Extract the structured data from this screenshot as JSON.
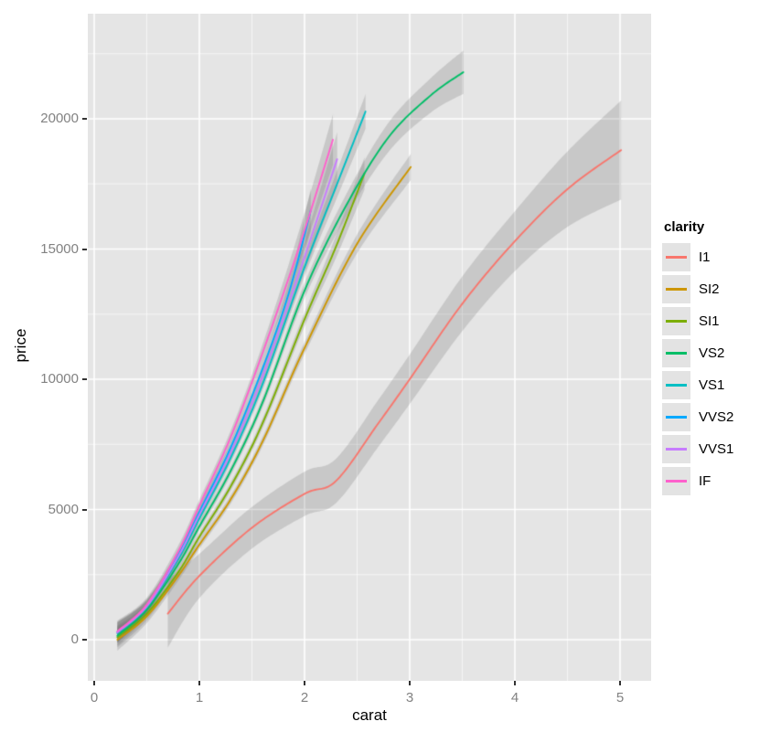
{
  "axes": {
    "x": {
      "label": "carat",
      "tick_labels": [
        "0",
        "1",
        "2",
        "3",
        "4",
        "5"
      ],
      "tick_values": [
        0,
        1,
        2,
        3,
        4,
        5
      ],
      "minor_values": [
        0.5,
        1.5,
        2.5,
        3.5,
        4.5
      ]
    },
    "y": {
      "label": "price",
      "tick_labels": [
        "0",
        "5000",
        "10000",
        "15000",
        "20000"
      ],
      "tick_values": [
        0,
        5000,
        10000,
        15000,
        20000
      ],
      "minor_values": [
        2500,
        7500,
        12500,
        17500,
        22500
      ]
    }
  },
  "legend": {
    "title": "clarity",
    "items": [
      {
        "label": "I1",
        "color": "#F8766D"
      },
      {
        "label": "SI2",
        "color": "#CD9600"
      },
      {
        "label": "SI1",
        "color": "#7CAE00"
      },
      {
        "label": "VS2",
        "color": "#00BE67"
      },
      {
        "label": "VS1",
        "color": "#00BFC4"
      },
      {
        "label": "VVS2",
        "color": "#00A9FF"
      },
      {
        "label": "VVS1",
        "color": "#C77CFF"
      },
      {
        "label": "IF",
        "color": "#FF61CC"
      }
    ]
  },
  "chart_data": {
    "type": "line",
    "subtype": "smoothed-conditional-means-with-confidence-ribbons",
    "title": "",
    "xlabel": "carat",
    "ylabel": "price",
    "xlim": [
      -0.06,
      5.3
    ],
    "ylim": [
      -1580,
      24030
    ],
    "grid": "on",
    "legend_position": "right",
    "panel_bg": "#E5E5E5",
    "grid_color": "#FFFFFF",
    "ribbon_color": "rgba(100,100,100,0.22)",
    "series": [
      {
        "name": "I1",
        "color": "#F8766D",
        "points": [
          [
            0.7,
            1000,
            1300
          ],
          [
            1.0,
            2450,
            850
          ],
          [
            1.5,
            4300,
            800
          ],
          [
            2.0,
            5600,
            850
          ],
          [
            2.3,
            6100,
            850
          ],
          [
            2.7,
            8300,
            900
          ],
          [
            3.0,
            10000,
            950
          ],
          [
            3.5,
            12900,
            1050
          ],
          [
            4.0,
            15300,
            1150
          ],
          [
            4.5,
            17300,
            1450
          ],
          [
            5.01,
            18800,
            1900
          ]
        ]
      },
      {
        "name": "SI2",
        "color": "#CD9600",
        "points": [
          [
            0.22,
            0,
            420
          ],
          [
            0.5,
            900,
            260
          ],
          [
            0.8,
            2450,
            180
          ],
          [
            1.0,
            3650,
            160
          ],
          [
            1.3,
            5400,
            160
          ],
          [
            1.6,
            7600,
            180
          ],
          [
            2.0,
            11200,
            230
          ],
          [
            2.5,
            15200,
            360
          ],
          [
            3.01,
            18150,
            500
          ]
        ]
      },
      {
        "name": "SI1",
        "color": "#7CAE00",
        "points": [
          [
            0.22,
            100,
            400
          ],
          [
            0.5,
            1000,
            250
          ],
          [
            0.8,
            2600,
            175
          ],
          [
            1.0,
            3950,
            165
          ],
          [
            1.3,
            5900,
            165
          ],
          [
            1.6,
            8300,
            190
          ],
          [
            2.0,
            12300,
            270
          ],
          [
            2.3,
            15100,
            430
          ],
          [
            2.57,
            17900,
            620
          ]
        ]
      },
      {
        "name": "VS2",
        "color": "#00BE67",
        "points": [
          [
            0.22,
            150,
            390
          ],
          [
            0.5,
            1150,
            245
          ],
          [
            0.8,
            2900,
            180
          ],
          [
            1.0,
            4350,
            170
          ],
          [
            1.3,
            6500,
            175
          ],
          [
            1.6,
            9100,
            195
          ],
          [
            2.0,
            13400,
            290
          ],
          [
            2.4,
            16700,
            430
          ],
          [
            2.8,
            19300,
            560
          ],
          [
            3.2,
            20900,
            660
          ],
          [
            3.51,
            21790,
            830
          ]
        ]
      },
      {
        "name": "VS1",
        "color": "#00BFC4",
        "points": [
          [
            0.22,
            250,
            390
          ],
          [
            0.5,
            1250,
            245
          ],
          [
            0.8,
            3100,
            190
          ],
          [
            1.0,
            4650,
            185
          ],
          [
            1.3,
            7000,
            190
          ],
          [
            1.6,
            9800,
            220
          ],
          [
            2.0,
            14300,
            340
          ],
          [
            2.3,
            17400,
            510
          ],
          [
            2.58,
            20280,
            660
          ]
        ]
      },
      {
        "name": "VVS2",
        "color": "#00A9FF",
        "points": [
          [
            0.22,
            300,
            390
          ],
          [
            0.5,
            1300,
            255
          ],
          [
            0.8,
            3250,
            205
          ],
          [
            1.0,
            4900,
            205
          ],
          [
            1.3,
            7400,
            215
          ],
          [
            1.6,
            10400,
            270
          ],
          [
            1.85,
            13300,
            430
          ],
          [
            2.06,
            16500,
            820
          ]
        ]
      },
      {
        "name": "VVS1",
        "color": "#C77CFF",
        "points": [
          [
            0.22,
            280,
            390
          ],
          [
            0.5,
            1280,
            255
          ],
          [
            0.8,
            3200,
            205
          ],
          [
            1.0,
            4800,
            205
          ],
          [
            1.3,
            7200,
            215
          ],
          [
            1.6,
            10100,
            290
          ],
          [
            1.95,
            14100,
            520
          ],
          [
            2.31,
            18450,
            1030
          ]
        ]
      },
      {
        "name": "IF",
        "color": "#FF61CC",
        "points": [
          [
            0.22,
            320,
            410
          ],
          [
            0.5,
            1350,
            265
          ],
          [
            0.8,
            3400,
            225
          ],
          [
            1.0,
            5150,
            225
          ],
          [
            1.3,
            7800,
            250
          ],
          [
            1.6,
            11000,
            330
          ],
          [
            1.95,
            15100,
            620
          ],
          [
            2.27,
            19200,
            970
          ]
        ]
      }
    ]
  }
}
